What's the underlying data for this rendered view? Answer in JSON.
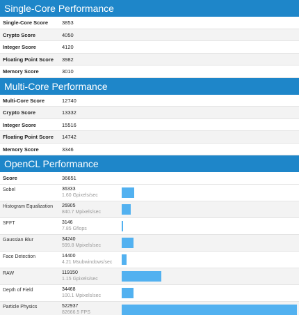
{
  "single_core": {
    "title": "Single-Core Performance",
    "rows": [
      {
        "label": "Single-Core Score",
        "value": "3853"
      },
      {
        "label": "Crypto Score",
        "value": "4050"
      },
      {
        "label": "Integer Score",
        "value": "4120"
      },
      {
        "label": "Floating Point Score",
        "value": "3982"
      },
      {
        "label": "Memory Score",
        "value": "3010"
      }
    ]
  },
  "multi_core": {
    "title": "Multi-Core Performance",
    "rows": [
      {
        "label": "Multi-Core Score",
        "value": "12740"
      },
      {
        "label": "Crypto Score",
        "value": "13332"
      },
      {
        "label": "Integer Score",
        "value": "15516"
      },
      {
        "label": "Floating Point Score",
        "value": "14742"
      },
      {
        "label": "Memory Score",
        "value": "3346"
      }
    ]
  },
  "opencl": {
    "title": "OpenCL Performance",
    "score_label": "Score",
    "score_value": "36651",
    "bar_color": "#52b1f0",
    "max_score": 522937,
    "tests": [
      {
        "label": "Sobel",
        "score": "36333",
        "rate": "1.60 Gpixels/sec",
        "value": 36333
      },
      {
        "label": "Histogram Equalization",
        "score": "26905",
        "rate": "840.7 Mpixels/sec",
        "value": 26905
      },
      {
        "label": "SFFT",
        "score": "3146",
        "rate": "7.85 Gflops",
        "value": 3146
      },
      {
        "label": "Gaussian Blur",
        "score": "34240",
        "rate": "599.8 Mpixels/sec",
        "value": 34240
      },
      {
        "label": "Face Detection",
        "score": "14400",
        "rate": "4.21 Msubwindows/sec",
        "value": 14400
      },
      {
        "label": "RAW",
        "score": "119150",
        "rate": "1.15 Gpixels/sec",
        "value": 119150
      },
      {
        "label": "Depth of Field",
        "score": "34468",
        "rate": "100.1 Mpixels/sec",
        "value": 34468
      },
      {
        "label": "Particle Physics",
        "score": "522937",
        "rate": "82666.5 FPS",
        "value": 522937
      }
    ]
  }
}
